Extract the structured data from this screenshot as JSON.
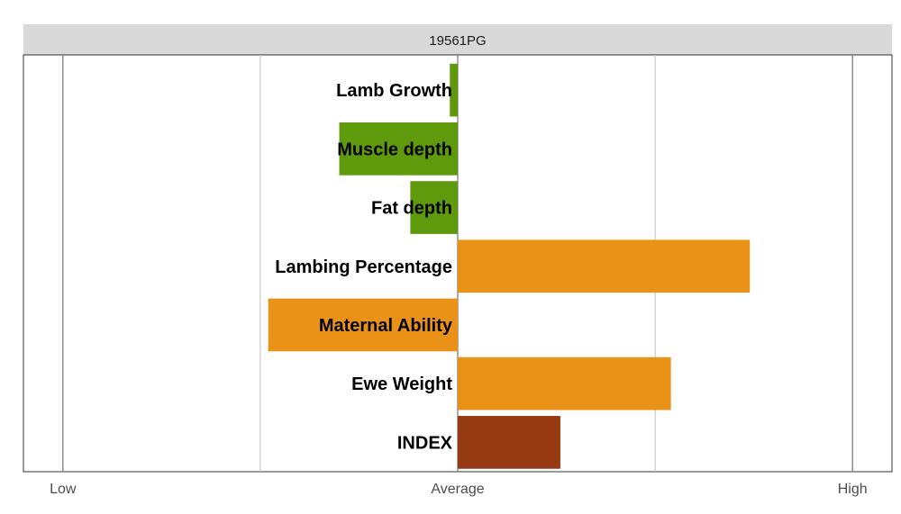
{
  "chart_data": {
    "type": "bar",
    "orientation": "horizontal",
    "title": "19561PG",
    "categories": [
      "Lamb Growth",
      "Muscle depth",
      "Fat depth",
      "Lambing Percentage",
      "Maternal Ability",
      "Ewe Weight",
      "INDEX"
    ],
    "values": [
      -0.04,
      -0.6,
      -0.24,
      1.48,
      -0.96,
      1.08,
      0.52
    ],
    "bar_colors": [
      "#5e9a0c",
      "#5e9a0c",
      "#5e9a0c",
      "#ea9218",
      "#ea9218",
      "#ea9218",
      "#963a14"
    ],
    "xlim": [
      -2.2,
      2.2
    ],
    "x_ticks": [
      {
        "value": -2,
        "label": "Low"
      },
      {
        "value": 0,
        "label": "Average"
      },
      {
        "value": 2,
        "label": "High"
      }
    ],
    "x_minor_ticks": [
      -1,
      1
    ],
    "grid": true,
    "strip_color": "#d9d9d9",
    "grid_major_color": "#7f7f7f",
    "grid_minor_color": "#bfbfbf"
  }
}
